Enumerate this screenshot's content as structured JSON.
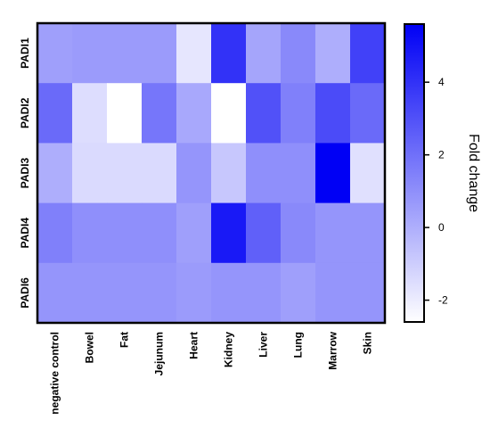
{
  "chart_data": {
    "type": "heatmap",
    "rows": [
      "PADI1",
      "PADI2",
      "PADI3",
      "PADI4",
      "PADI6"
    ],
    "columns": [
      "negative control",
      "Bowel",
      "Fat",
      "Jejunum",
      "Heart",
      "Kidney",
      "Liver",
      "Lung",
      "Marrow",
      "Skin"
    ],
    "values": [
      [
        0.5,
        0.6,
        0.6,
        0.6,
        -1.8,
        4.0,
        0.3,
        1.2,
        0.0,
        3.5
      ],
      [
        2.2,
        -1.5,
        -2.6,
        1.8,
        0.2,
        -2.6,
        3.0,
        1.5,
        3.2,
        2.2
      ],
      [
        0.0,
        -1.4,
        -1.4,
        -1.4,
        0.8,
        -0.8,
        1.0,
        1.0,
        5.6,
        -1.6
      ],
      [
        1.5,
        1.0,
        1.0,
        1.0,
        0.5,
        4.8,
        2.5,
        1.2,
        0.8,
        0.8
      ],
      [
        0.8,
        0.8,
        0.8,
        0.8,
        0.6,
        0.8,
        0.8,
        0.5,
        0.8,
        0.8
      ]
    ],
    "colorbar": {
      "title": "Fold change",
      "min": -2.6,
      "max": 5.6,
      "ticks": [
        -2,
        0,
        2,
        4
      ],
      "tick_labels": [
        "-2",
        "0",
        "2",
        "4"
      ],
      "low_color": "#ffffff",
      "high_color": "#0000f5"
    },
    "xlabel": "",
    "ylabel": ""
  }
}
